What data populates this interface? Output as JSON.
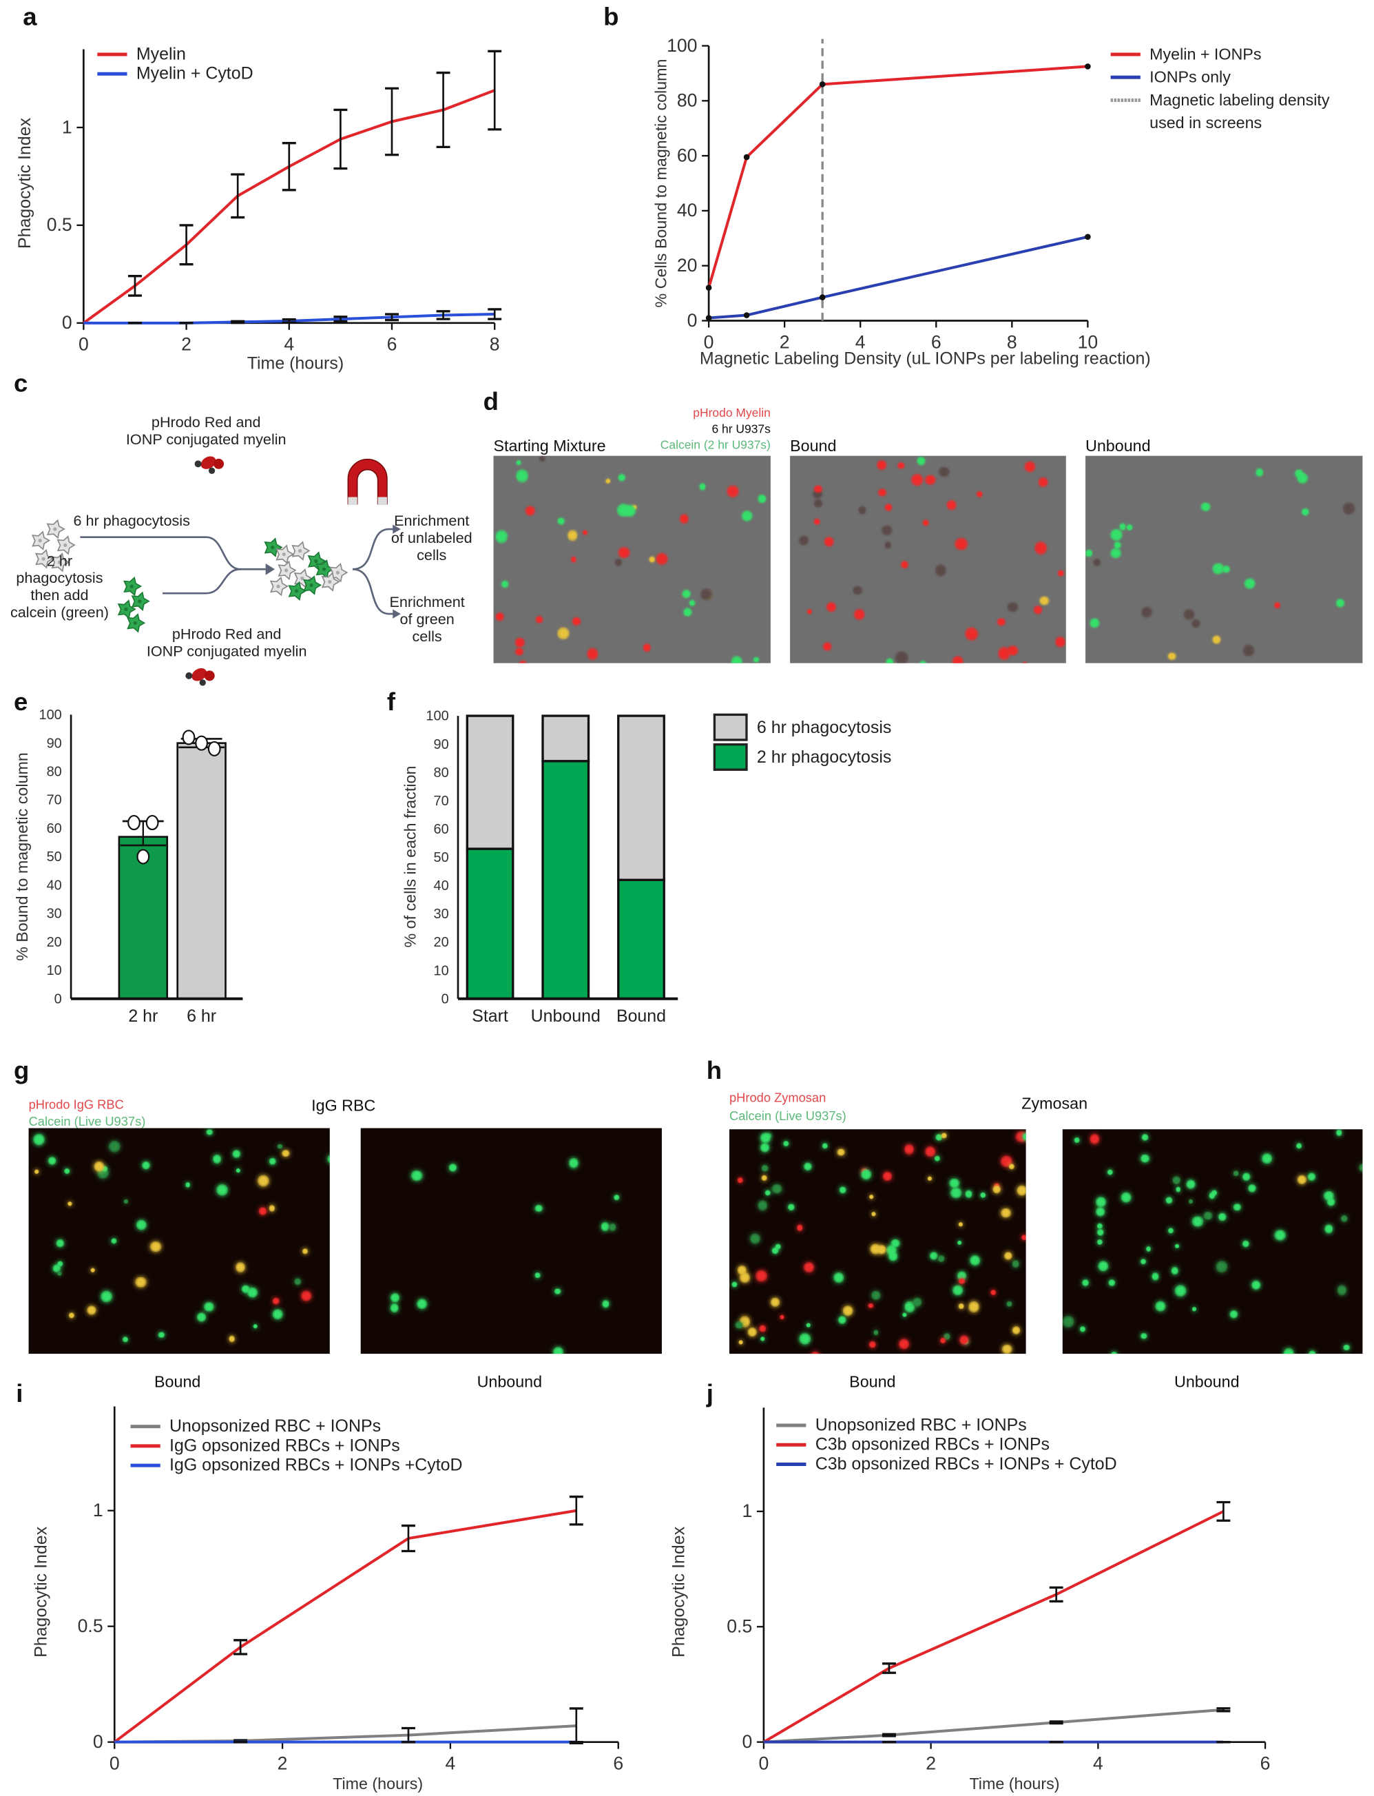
{
  "panel_labels": [
    "a",
    "b",
    "c",
    "d",
    "e",
    "f",
    "g",
    "h",
    "i",
    "j"
  ],
  "colors": {
    "red": "#e0262b",
    "blue": "#2a3fb0",
    "gray": "#808080",
    "green": "#00a651",
    "dark_green": "#0f9a4b",
    "light_gray": "#cdcdcd"
  },
  "panel_c": {
    "top_label": [
      "pHrodo Red and",
      "IONP conjugated myelin"
    ],
    "six_hr": "6 hr phagocytosis",
    "two_hr": [
      "2 hr",
      "phagocytosis",
      "then add",
      "calcein (green)"
    ],
    "bottom_label": [
      "pHrodo Red and",
      "IONP conjugated myelin"
    ],
    "enrich_unlabeled": [
      "Enrichment",
      "of unlabeled",
      "cells"
    ],
    "enrich_green": [
      "Enrichment",
      "of green",
      "cells"
    ],
    "icons": [
      "gray-cell-icon",
      "green-cell-icon",
      "myelin-icon",
      "magnet-icon",
      "arrow-icon"
    ]
  },
  "panel_d": {
    "legend_red": "pHrodo Myelin",
    "legend_black": "6 hr U937s",
    "legend_green": "Calcein (2 hr U937s)",
    "titles": [
      "Starting Mixture",
      "Bound",
      "Unbound"
    ]
  },
  "panel_g": {
    "legend_red": "pHrodo IgG RBC",
    "legend_green": "Calcein (Live U937s)",
    "title": "IgG RBC",
    "captions": [
      "Bound",
      "Unbound"
    ]
  },
  "panel_h": {
    "legend_red": "pHrodo Zymosan",
    "legend_green": "Calcein (Live U937s)",
    "title": "Zymosan",
    "captions": [
      "Bound",
      "Unbound"
    ]
  },
  "chart_data": [
    {
      "panel": "a",
      "type": "line",
      "xlabel": "Time (hours)",
      "ylabel": "Phagocytic Index",
      "xlim": [
        0,
        8
      ],
      "ylim": [
        0,
        1.4
      ],
      "xticks": [
        0,
        2,
        4,
        6,
        8
      ],
      "yticks": [
        0,
        0.5,
        1
      ],
      "ytick_labels": [
        "0",
        "0.5",
        "1"
      ],
      "x": [
        0,
        1,
        2,
        3,
        4,
        5,
        6,
        7,
        8
      ],
      "legend": "top-left",
      "series": [
        {
          "name": "Myelin",
          "color": "#e0262b",
          "values": [
            0,
            0.19,
            0.4,
            0.65,
            0.8,
            0.94,
            1.03,
            1.09,
            1.19
          ],
          "err": [
            0,
            0.05,
            0.1,
            0.11,
            0.12,
            0.15,
            0.17,
            0.19,
            0.2
          ]
        },
        {
          "name": "Myelin + CytoD",
          "color": "#2a4fd8",
          "values": [
            0,
            0,
            0,
            0.005,
            0.01,
            0.02,
            0.03,
            0.04,
            0.045
          ],
          "err": [
            0,
            0,
            0,
            0.004,
            0.008,
            0.012,
            0.015,
            0.02,
            0.025
          ]
        }
      ]
    },
    {
      "panel": "b",
      "type": "line",
      "xlabel": "Magnetic Labeling Density (uL IONPs per labeling reaction)",
      "ylabel": "% Cells Bound to magnetic column",
      "xlim": [
        0,
        10
      ],
      "ylim": [
        0,
        100
      ],
      "xticks": [
        0,
        2,
        4,
        6,
        8,
        10
      ],
      "yticks": [
        0,
        20,
        40,
        60,
        80,
        100
      ],
      "legend": "right",
      "series": [
        {
          "name": "Myelin + IONPs",
          "color": "#e0262b",
          "x": [
            0,
            1,
            3,
            10
          ],
          "values": [
            12,
            59.5,
            86,
            92.5
          ]
        },
        {
          "name": "IONPs only",
          "color": "#2a3fb0",
          "x": [
            0,
            1,
            3,
            10
          ],
          "values": [
            1,
            2,
            8.5,
            30.5
          ]
        }
      ],
      "reference_line": {
        "x": 3,
        "name": "Magnetic labeling density",
        "name_line2": "used in screens",
        "color": "#888888"
      }
    },
    {
      "panel": "e",
      "type": "bar",
      "ylabel": "% Bound to magnetic column",
      "ylim": [
        0,
        100
      ],
      "yticks": [
        0,
        10,
        20,
        30,
        40,
        50,
        60,
        70,
        80,
        90,
        100
      ],
      "categories": [
        "2 hr",
        "6 hr"
      ],
      "values": [
        57,
        90
      ],
      "err_upper": [
        62.5,
        91.5
      ],
      "err_lower": [
        54,
        88.5
      ],
      "points": [
        [
          62,
          62,
          50
        ],
        [
          92,
          88,
          90
        ]
      ],
      "bar_colors": [
        "#0f9a4b",
        "#cdcdcd"
      ]
    },
    {
      "panel": "f",
      "type": "bar",
      "stacked": true,
      "ylabel": "% of  cells in each fraction",
      "ylim": [
        0,
        100
      ],
      "yticks": [
        0,
        10,
        20,
        30,
        40,
        50,
        60,
        70,
        80,
        90,
        100
      ],
      "categories": [
        "Start",
        "Unbound",
        "Bound"
      ],
      "legend": "right",
      "series": [
        {
          "name": "2 hr phagocytosis",
          "color": "#00a651",
          "values": [
            53,
            84,
            42
          ]
        },
        {
          "name": "6 hr phagocytosis",
          "color": "#cdcdcd",
          "values": [
            47,
            16,
            58
          ]
        }
      ]
    },
    {
      "panel": "i",
      "type": "line",
      "xlabel": "Time (hours)",
      "ylabel": "Phagocytic Index",
      "xlim": [
        0,
        6
      ],
      "ylim": [
        0,
        1.45
      ],
      "xticks": [
        0,
        2,
        4,
        6
      ],
      "yticks": [
        0,
        0.5,
        1
      ],
      "ytick_labels": [
        "0",
        "0.5",
        "1"
      ],
      "x": [
        0,
        1.5,
        3.5,
        5.5
      ],
      "legend": "top-left",
      "series": [
        {
          "name": "Unopsonized RBC + IONPs",
          "color": "#808080",
          "values": [
            0,
            0.005,
            0.03,
            0.07
          ],
          "err": [
            0,
            0.003,
            0.03,
            0.075
          ]
        },
        {
          "name": "IgG opsonized RBCs + IONPs",
          "color": "#e0262b",
          "values": [
            0,
            0.41,
            0.88,
            1.0
          ],
          "err": [
            0,
            0.03,
            0.055,
            0.06
          ]
        },
        {
          "name": "IgG opsonized RBCs +  IONPs +CytoD",
          "color": "#2a4fd8",
          "values": [
            0,
            0,
            0,
            0
          ],
          "err": [
            0,
            0,
            0,
            0
          ]
        }
      ]
    },
    {
      "panel": "j",
      "type": "line",
      "xlabel": "Time (hours)",
      "ylabel": "Phagocytic Index",
      "xlim": [
        0,
        6
      ],
      "ylim": [
        0,
        1.45
      ],
      "xticks": [
        0,
        2,
        4,
        6
      ],
      "yticks": [
        0,
        0.5,
        1
      ],
      "ytick_labels": [
        "0",
        "0.5",
        "1"
      ],
      "x": [
        0,
        1.5,
        3.5,
        5.5
      ],
      "legend": "top-left",
      "series": [
        {
          "name": "Unopsonized RBC + IONPs",
          "color": "#808080",
          "values": [
            0,
            0.03,
            0.085,
            0.14
          ],
          "err": [
            0,
            0.004,
            0.004,
            0.006
          ]
        },
        {
          "name": "C3b opsonized RBCs + IONPs",
          "color": "#e0262b",
          "values": [
            0,
            0.32,
            0.64,
            1.0
          ],
          "err": [
            0,
            0.02,
            0.03,
            0.04
          ]
        },
        {
          "name": "C3b opsonized RBCs + IONPs + CytoD",
          "color": "#2a3fb0",
          "values": [
            0,
            0,
            0,
            0
          ],
          "err": [
            0,
            0,
            0,
            0
          ]
        }
      ]
    }
  ]
}
